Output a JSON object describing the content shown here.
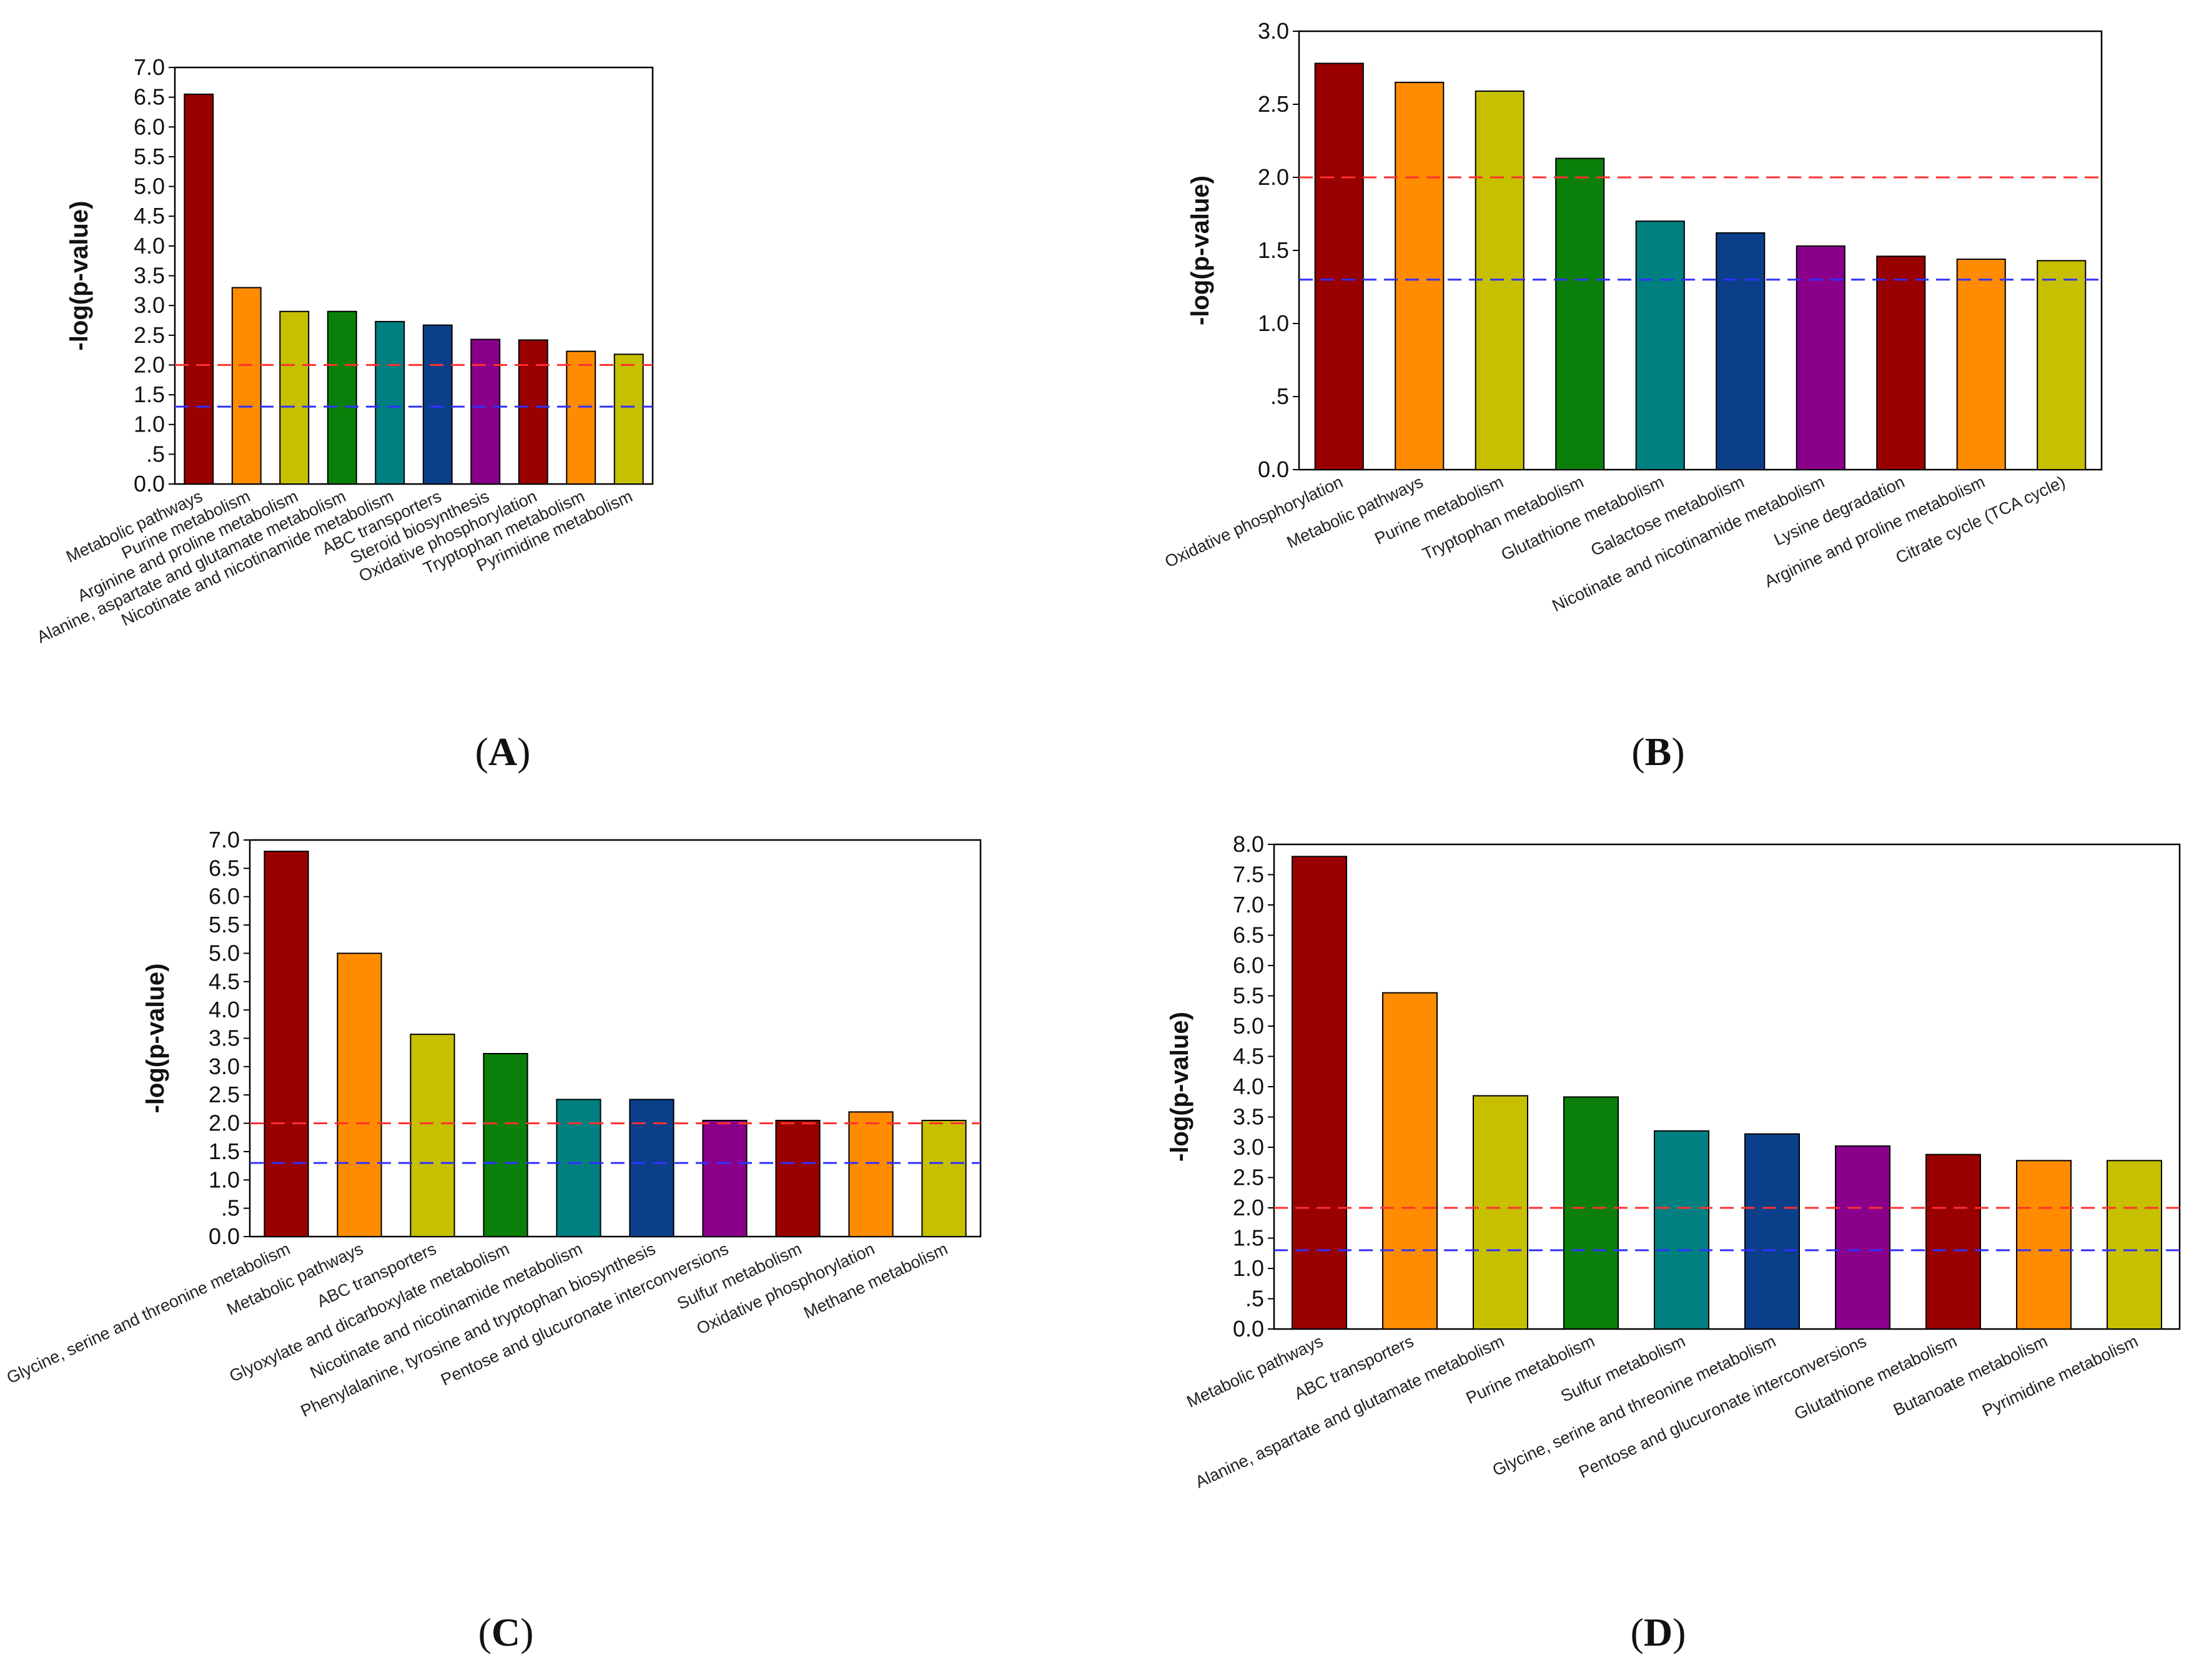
{
  "palette": {
    "dark_red": "#990000",
    "orange": "#ff8c00",
    "olive": "#c6c000",
    "green": "#0a800a",
    "teal": "#008080",
    "navy": "#0b3f8a",
    "purple": "#8b008b",
    "ref_red": "#ff3030",
    "ref_blue": "#3030ff"
  },
  "chart_data": [
    {
      "type": "bar",
      "panel": "A",
      "ylabel": "-log(p-value)",
      "ylim": [
        0,
        7
      ],
      "yticks": [
        "0.0",
        ".5",
        "1.0",
        "1.5",
        "2.0",
        "2.5",
        "3.0",
        "3.5",
        "4.0",
        "4.5",
        "5.0",
        "5.5",
        "6.0",
        "6.5",
        "7.0"
      ],
      "categories": [
        "Metabolic pathways",
        "Purine metabolism",
        "Arginine and proline metabolism",
        "Alanine, aspartate and glutamate metabolism",
        "Nicotinate and nicotinamide metabolism",
        "ABC transporters",
        "Steroid biosynthesis",
        "Oxidative phosphorylation",
        "Tryptophan metabolism",
        "Pyrimidine metabolism"
      ],
      "values": [
        6.55,
        3.3,
        2.9,
        2.9,
        2.73,
        2.67,
        2.43,
        2.42,
        2.23,
        2.18
      ],
      "colors": [
        "#990000",
        "#ff8c00",
        "#c6c000",
        "#0a800a",
        "#008080",
        "#0b3f8a",
        "#8b008b",
        "#990000",
        "#ff8c00",
        "#c6c000"
      ],
      "ref_lines": [
        2.0,
        1.3
      ]
    },
    {
      "type": "bar",
      "panel": "B",
      "ylabel": "-log(p-value)",
      "ylim": [
        0,
        3
      ],
      "yticks": [
        "0.0",
        ".5",
        "1.0",
        "1.5",
        "2.0",
        "2.5",
        "3.0"
      ],
      "categories": [
        "Oxidative phosphorylation",
        "Metabolic pathways",
        "Purine metabolism",
        "Tryptophan metabolism",
        "Glutathione metabolism",
        "Galactose metabolism",
        "Nicotinate and nicotinamide metabolism",
        "Lysine degradation",
        "Arginine and proline metabolism",
        "Citrate cycle (TCA cycle)"
      ],
      "values": [
        2.78,
        2.65,
        2.59,
        2.13,
        1.7,
        1.62,
        1.53,
        1.46,
        1.44,
        1.43
      ],
      "colors": [
        "#990000",
        "#ff8c00",
        "#c6c000",
        "#0a800a",
        "#008080",
        "#0b3f8a",
        "#8b008b",
        "#990000",
        "#ff8c00",
        "#c6c000"
      ],
      "ref_lines": [
        2.0,
        1.3
      ]
    },
    {
      "type": "bar",
      "panel": "C",
      "ylabel": "-log(p-value)",
      "ylim": [
        0,
        7
      ],
      "yticks": [
        "0.0",
        ".5",
        "1.0",
        "1.5",
        "2.0",
        "2.5",
        "3.0",
        "3.5",
        "4.0",
        "4.5",
        "5.0",
        "5.5",
        "6.0",
        "6.5",
        "7.0"
      ],
      "categories": [
        "Glycine, serine and threonine metabolism",
        "Metabolic pathways",
        "ABC transporters",
        "Glyoxylate and dicarboxylate metabolism",
        "Nicotinate and nicotinamide metabolism",
        "Phenylalanine, tyrosine and tryptophan biosynthesis",
        "Pentose and glucuronate interconversions",
        "Sulfur metabolism",
        "Oxidative phosphorylation",
        "Methane metabolism"
      ],
      "values": [
        6.8,
        5.0,
        3.57,
        3.23,
        2.42,
        2.42,
        2.05,
        2.05,
        2.2,
        2.05
      ],
      "colors": [
        "#990000",
        "#ff8c00",
        "#c6c000",
        "#0a800a",
        "#008080",
        "#0b3f8a",
        "#8b008b",
        "#990000",
        "#ff8c00",
        "#c6c000"
      ],
      "ref_lines": [
        2.0,
        1.3
      ]
    },
    {
      "type": "bar",
      "panel": "D",
      "ylabel": "-log(p-value)",
      "ylim": [
        0,
        8
      ],
      "yticks": [
        "0.0",
        ".5",
        "1.0",
        "1.5",
        "2.0",
        "2.5",
        "3.0",
        "3.5",
        "4.0",
        "4.5",
        "5.0",
        "5.5",
        "6.0",
        "6.5",
        "7.0",
        "7.5",
        "8.0"
      ],
      "categories": [
        "Metabolic pathways",
        "ABC transporters",
        "Alanine, aspartate and glutamate metabolism",
        "Purine metabolism",
        "Sulfur metabolism",
        "Glycine, serine and threonine metabolism",
        "Pentose and glucuronate interconversions",
        "Glutathione metabolism",
        "Butanoate metabolism",
        "Pyrimidine metabolism"
      ],
      "values": [
        7.8,
        5.55,
        3.85,
        3.83,
        3.27,
        3.22,
        3.02,
        2.88,
        2.78,
        2.78
      ],
      "colors": [
        "#990000",
        "#ff8c00",
        "#c6c000",
        "#0a800a",
        "#008080",
        "#0b3f8a",
        "#8b008b",
        "#990000",
        "#ff8c00",
        "#c6c000"
      ],
      "ref_lines": [
        2.0,
        1.3
      ]
    }
  ]
}
